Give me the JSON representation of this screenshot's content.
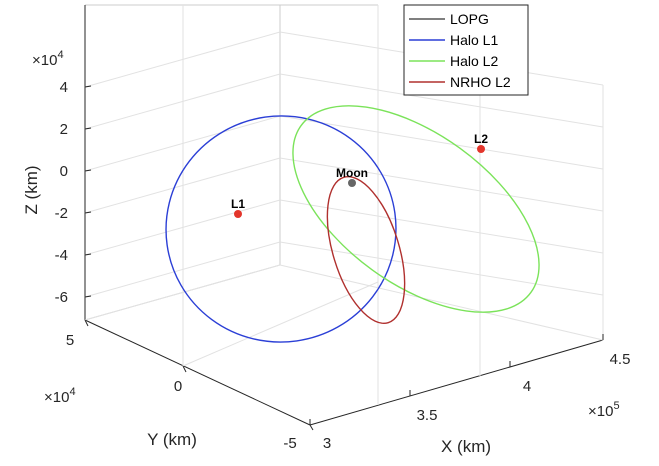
{
  "chart_data": {
    "type": "line",
    "projection": "3d",
    "xlabel": "X (km)",
    "ylabel": "Y (km)",
    "zlabel": "Z (km)",
    "x_exponent": "×10^5",
    "y_exponent": "×10^4",
    "z_exponent": "×10^4",
    "x_ticks": [
      "3",
      "3.5",
      "4",
      "4.5"
    ],
    "y_ticks": [
      "-5",
      "0",
      "5"
    ],
    "z_ticks": [
      "4",
      "2",
      "0",
      "-2",
      "-4",
      "-6"
    ],
    "grid": true,
    "legend_position": "top-right",
    "series": [
      {
        "name": "LOPG",
        "color": "#555555"
      },
      {
        "name": "Halo L1",
        "color": "#2b3fd6"
      },
      {
        "name": "Halo L2",
        "color": "#7be35a"
      },
      {
        "name": "NRHO L2",
        "color": "#b0302e"
      }
    ],
    "points": [
      {
        "label": "L1",
        "x": 3.26,
        "y": 0.0,
        "z": -2.0,
        "color": "#e3352b"
      },
      {
        "label": "Moon",
        "x": 3.84,
        "y": 0.0,
        "z": -0.5,
        "color": "#666666"
      },
      {
        "label": "L2",
        "x": 4.49,
        "y": 0.0,
        "z": 1.0,
        "color": "#e3352b"
      }
    ]
  }
}
